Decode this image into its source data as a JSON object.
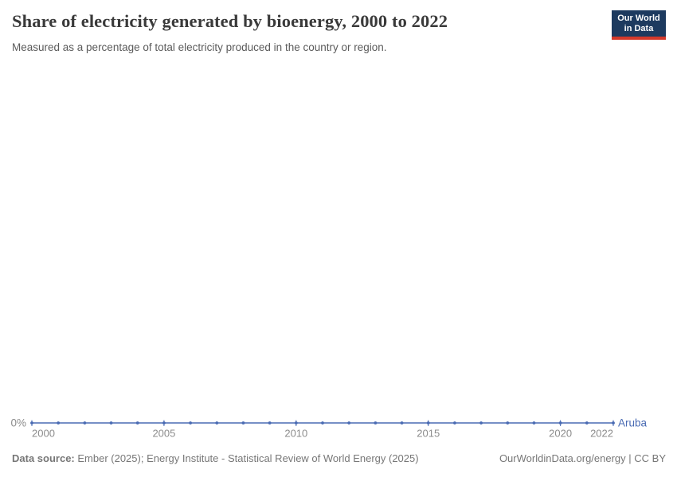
{
  "header": {
    "title": "Share of electricity generated by bioenergy, 2000 to 2022",
    "subtitle": "Measured as a percentage of total electricity produced in the country or region.",
    "logo": {
      "line1": "Our World",
      "line2": "in Data",
      "background": "#1d3a5f",
      "accent": "#d4392b"
    }
  },
  "chart_data": {
    "type": "line",
    "title": "Share of electricity generated by bioenergy, 2000 to 2022",
    "xlabel": "",
    "ylabel": "",
    "grid": false,
    "legend_position": "end-of-line-label",
    "x": [
      2000,
      2001,
      2002,
      2003,
      2004,
      2005,
      2006,
      2007,
      2008,
      2009,
      2010,
      2011,
      2012,
      2013,
      2014,
      2015,
      2016,
      2017,
      2018,
      2019,
      2020,
      2021,
      2022
    ],
    "series": [
      {
        "name": "Aruba",
        "color": "#4a6bb3",
        "values": [
          0,
          0,
          0,
          0,
          0,
          0,
          0,
          0,
          0,
          0,
          0,
          0,
          0,
          0,
          0,
          0,
          0,
          0,
          0,
          0,
          0,
          0,
          0
        ]
      }
    ],
    "x_ticks": [
      2000,
      2005,
      2010,
      2015,
      2020,
      2022
    ],
    "y_ticks": [
      {
        "value": 0,
        "label": "0%"
      }
    ],
    "ylim": [
      0,
      100
    ],
    "tick_label_color": "#8c8c8c"
  },
  "footer": {
    "datasource_label": "Data source:",
    "datasource_text": " Ember (2025); Energy Institute - Statistical Review of World Energy (2025)",
    "rights": "OurWorldinData.org/energy | CC BY"
  }
}
